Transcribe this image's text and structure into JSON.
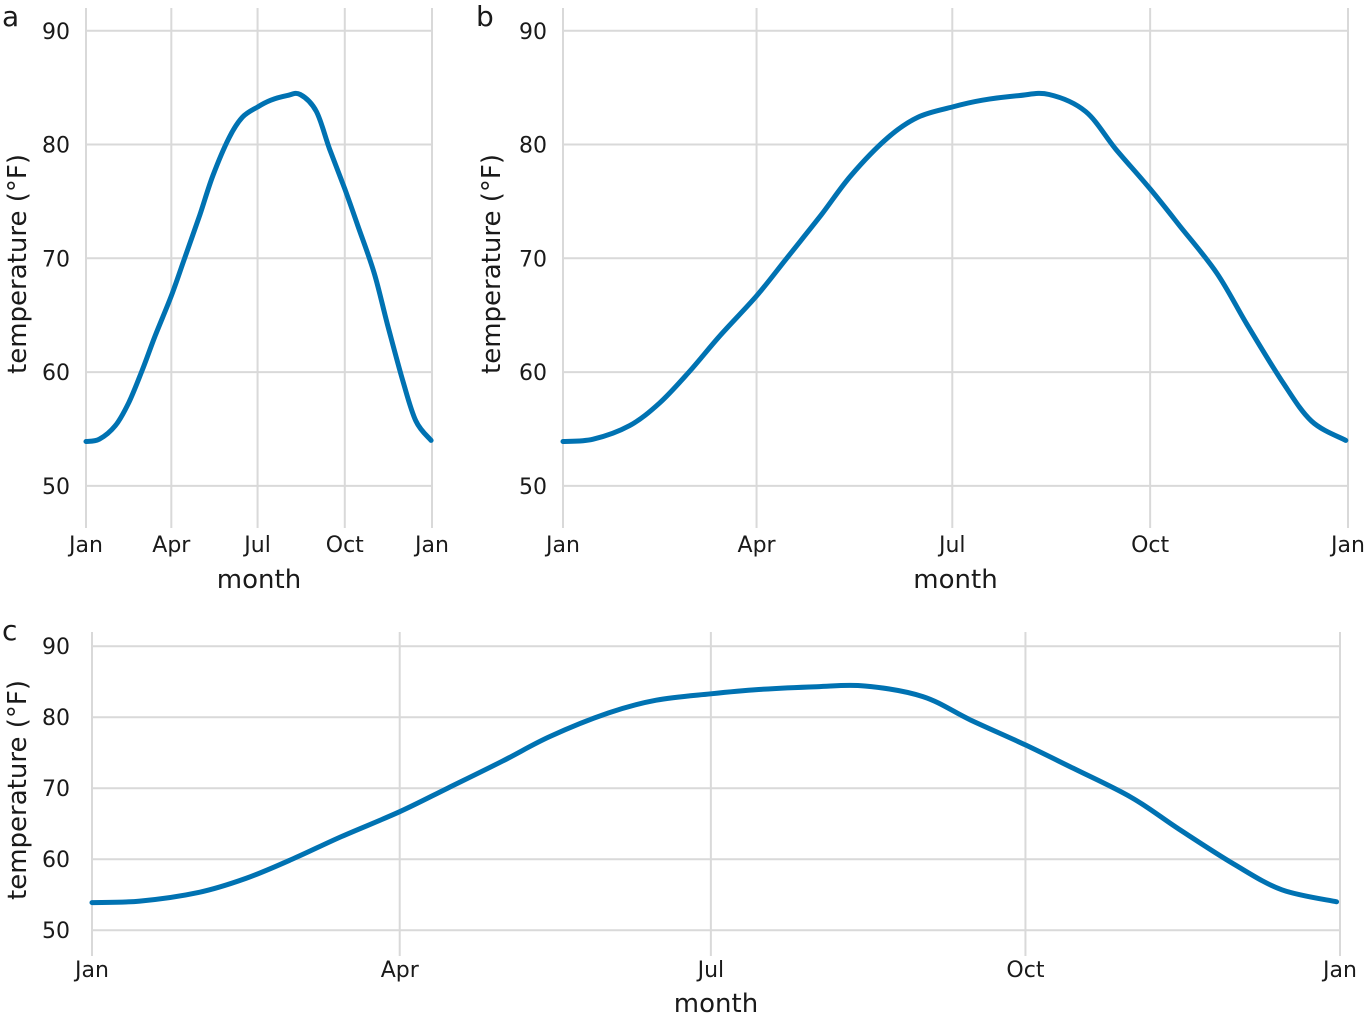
{
  "chart_data": [
    {
      "type": "line",
      "panel_tag": "a",
      "xlabel": "month",
      "ylabel": "temperature (°F)",
      "x_tick_labels": [
        "Jan",
        "Apr",
        "Jul",
        "Oct",
        "Jan"
      ],
      "y_tick_labels": [
        "50",
        "60",
        "70",
        "80",
        "90"
      ],
      "y_ticks": [
        50,
        60,
        70,
        80,
        90
      ],
      "ylim": [
        47,
        92
      ],
      "grid": true,
      "series": [
        {
          "color": "#0072b2",
          "x_day_of_year": [
            1,
            15,
            32,
            46,
            60,
            74,
            91,
            105,
            121,
            135,
            152,
            166,
            182,
            196,
            213,
            227,
            244,
            258,
            274,
            288,
            305,
            319,
            335,
            349,
            365
          ],
          "y": [
            53.9,
            54.1,
            55.3,
            57.3,
            60.1,
            63.2,
            66.7,
            70.0,
            73.8,
            77.3,
            80.6,
            82.4,
            83.3,
            83.9,
            84.3,
            84.4,
            82.9,
            79.6,
            76.1,
            72.8,
            68.7,
            64.2,
            59.3,
            55.7,
            54.0
          ]
        }
      ]
    },
    {
      "type": "line",
      "panel_tag": "b",
      "xlabel": "month",
      "ylabel": "temperature (°F)",
      "x_tick_labels": [
        "Jan",
        "Apr",
        "Jul",
        "Oct",
        "Jan"
      ],
      "y_tick_labels": [
        "50",
        "60",
        "70",
        "80",
        "90"
      ],
      "y_ticks": [
        50,
        60,
        70,
        80,
        90
      ],
      "ylim": [
        47,
        92
      ],
      "grid": true,
      "series": [
        {
          "color": "#0072b2",
          "x_day_of_year": [
            1,
            15,
            32,
            46,
            60,
            74,
            91,
            105,
            121,
            135,
            152,
            166,
            182,
            196,
            213,
            227,
            244,
            258,
            274,
            288,
            305,
            319,
            335,
            349,
            365
          ],
          "y": [
            53.9,
            54.1,
            55.3,
            57.3,
            60.1,
            63.2,
            66.7,
            70.0,
            73.8,
            77.3,
            80.6,
            82.4,
            83.3,
            83.9,
            84.3,
            84.4,
            82.9,
            79.6,
            76.1,
            72.8,
            68.7,
            64.2,
            59.3,
            55.7,
            54.0
          ]
        }
      ]
    },
    {
      "type": "line",
      "panel_tag": "c",
      "xlabel": "month",
      "ylabel": "temperature (°F)",
      "x_tick_labels": [
        "Jan",
        "Apr",
        "Jul",
        "Oct",
        "Jan"
      ],
      "y_tick_labels": [
        "50",
        "60",
        "70",
        "80",
        "90"
      ],
      "y_ticks": [
        50,
        60,
        70,
        80,
        90
      ],
      "ylim": [
        47.5,
        92
      ],
      "grid": true,
      "series": [
        {
          "color": "#0072b2",
          "x_day_of_year": [
            1,
            15,
            32,
            46,
            60,
            74,
            91,
            105,
            121,
            135,
            152,
            166,
            182,
            196,
            213,
            227,
            244,
            258,
            274,
            288,
            305,
            319,
            335,
            349,
            365
          ],
          "y": [
            53.9,
            54.1,
            55.3,
            57.3,
            60.1,
            63.2,
            66.7,
            70.0,
            73.8,
            77.3,
            80.6,
            82.4,
            83.3,
            83.9,
            84.3,
            84.4,
            82.9,
            79.6,
            76.1,
            72.8,
            68.7,
            64.2,
            59.3,
            55.7,
            54.0
          ]
        }
      ]
    }
  ]
}
